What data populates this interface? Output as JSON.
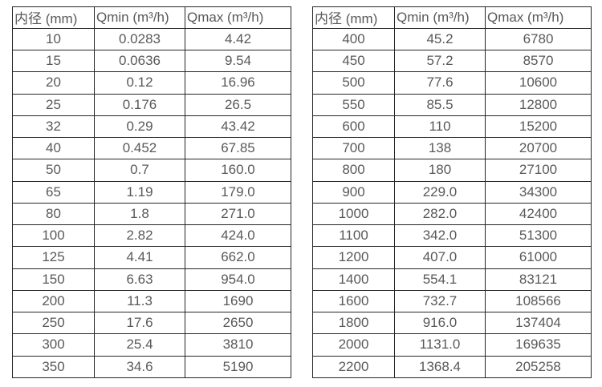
{
  "colors": {
    "background": "#ffffff",
    "border": "#262626",
    "text": "#595959"
  },
  "tables": [
    {
      "name": "small-diameters",
      "headers": [
        "内径 (mm)",
        "Qmin (m³/h)",
        "Qmax (m³/h)"
      ],
      "rows": [
        [
          "10",
          "0.0283",
          "4.42"
        ],
        [
          "15",
          "0.0636",
          "9.54"
        ],
        [
          "20",
          "0.12",
          "16.96"
        ],
        [
          "25",
          "0.176",
          "26.5"
        ],
        [
          "32",
          "0.29",
          "43.42"
        ],
        [
          "40",
          "0.452",
          "67.85"
        ],
        [
          "50",
          "0.7",
          "160.0"
        ],
        [
          "65",
          "1.19",
          "179.0"
        ],
        [
          "80",
          "1.8",
          "271.0"
        ],
        [
          "100",
          "2.82",
          "424.0"
        ],
        [
          "125",
          "4.41",
          "662.0"
        ],
        [
          "150",
          "6.63",
          "954.0"
        ],
        [
          "200",
          "11.3",
          "1690"
        ],
        [
          "250",
          "17.6",
          "2650"
        ],
        [
          "300",
          "25.4",
          "3810"
        ],
        [
          "350",
          "34.6",
          "5190"
        ]
      ]
    },
    {
      "name": "large-diameters",
      "headers": [
        "内径 (mm)",
        "Qmin (m³/h)",
        "Qmax (m³/h)"
      ],
      "rows": [
        [
          "400",
          "45.2",
          "6780"
        ],
        [
          "450",
          "57.2",
          "8570"
        ],
        [
          "500",
          "77.6",
          "10600"
        ],
        [
          "550",
          "85.5",
          "12800"
        ],
        [
          "600",
          "110",
          "15200"
        ],
        [
          "700",
          "138",
          "20700"
        ],
        [
          "800",
          "180",
          "27100"
        ],
        [
          "900",
          "229.0",
          "34300"
        ],
        [
          "1000",
          "282.0",
          "42400"
        ],
        [
          "1100",
          "342.0",
          "51300"
        ],
        [
          "1200",
          "407.0",
          "61000"
        ],
        [
          "1400",
          "554.1",
          "83121"
        ],
        [
          "1600",
          "732.7",
          "108566"
        ],
        [
          "1800",
          "916.0",
          "137404"
        ],
        [
          "2000",
          "1131.0",
          "169635"
        ],
        [
          "2200",
          "1368.4",
          "205258"
        ]
      ]
    }
  ]
}
